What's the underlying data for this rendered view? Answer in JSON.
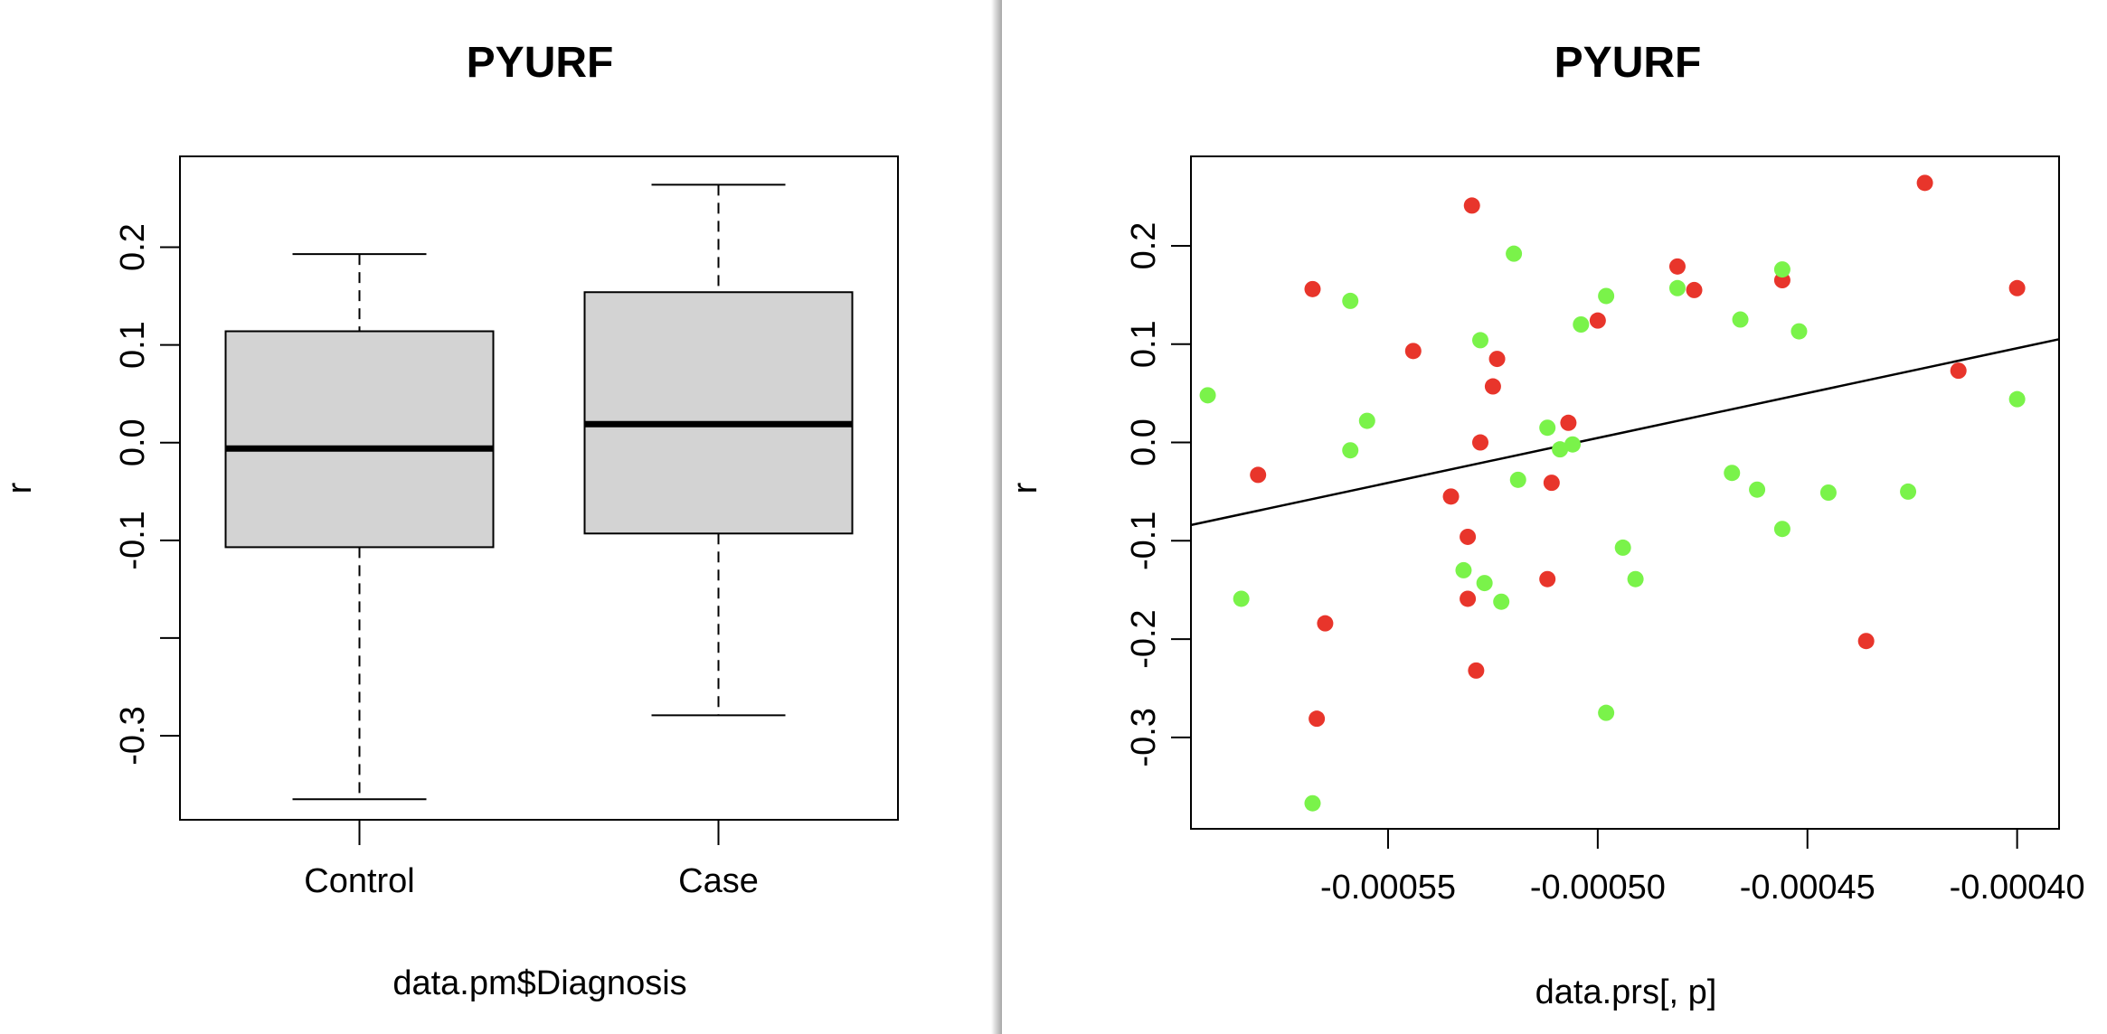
{
  "chart_data": [
    {
      "type": "box",
      "title": "PYURF",
      "xlabel": "data.pm$Diagnosis",
      "ylabel": "r",
      "ylim": [
        -0.386,
        0.293
      ],
      "yticks": [
        -0.3,
        -0.2,
        -0.1,
        0.0,
        0.1,
        0.2
      ],
      "ytick_labels": [
        "-0.3",
        "",
        "-0.1",
        "0.0",
        "0.1",
        "0.2"
      ],
      "box_fill": "#d3d3d3",
      "categories": [
        "Control",
        "Case"
      ],
      "boxes": [
        {
          "name": "Control",
          "min": -0.365,
          "q1": -0.107,
          "median": -0.006,
          "q3": 0.114,
          "max": 0.193
        },
        {
          "name": "Case",
          "min": -0.279,
          "q1": -0.093,
          "median": 0.019,
          "q3": 0.154,
          "max": 0.264
        }
      ]
    },
    {
      "type": "scatter",
      "title": "PYURF",
      "xlabel": "data.prs[, p]",
      "ylabel": "r",
      "xlim": [
        -0.000597,
        -0.00039
      ],
      "ylim": [
        -0.393,
        0.291
      ],
      "xticks": [
        -0.00055,
        -0.0005,
        -0.00045,
        -0.0004
      ],
      "xtick_labels": [
        "-0.00055",
        "-0.00050",
        "-0.00045",
        "-0.00040"
      ],
      "yticks": [
        -0.3,
        -0.2,
        -0.1,
        0.0,
        0.1,
        0.2
      ],
      "ytick_labels": [
        "-0.3",
        "-0.2",
        "-0.1",
        "0.0",
        "0.1",
        "0.2"
      ],
      "trend_line": {
        "x": [
          -0.000597,
          -0.00039
        ],
        "y": [
          -0.084,
          0.105
        ]
      },
      "series": [
        {
          "color": "#e8352b",
          "points": [
            {
              "x": -0.000581,
              "y": -0.033
            },
            {
              "x": -0.000568,
              "y": 0.156
            },
            {
              "x": -0.000567,
              "y": -0.281
            },
            {
              "x": -0.000565,
              "y": -0.184
            },
            {
              "x": -0.000544,
              "y": 0.093
            },
            {
              "x": -0.000535,
              "y": -0.055
            },
            {
              "x": -0.000531,
              "y": -0.096
            },
            {
              "x": -0.000531,
              "y": -0.159
            },
            {
              "x": -0.00053,
              "y": 0.241
            },
            {
              "x": -0.000529,
              "y": -0.232
            },
            {
              "x": -0.000528,
              "y": 0.0
            },
            {
              "x": -0.000525,
              "y": 0.057
            },
            {
              "x": -0.000524,
              "y": 0.085
            },
            {
              "x": -0.000512,
              "y": -0.139
            },
            {
              "x": -0.000511,
              "y": -0.041
            },
            {
              "x": -0.000507,
              "y": 0.02
            },
            {
              "x": -0.0005,
              "y": 0.124
            },
            {
              "x": -0.000481,
              "y": 0.179
            },
            {
              "x": -0.000477,
              "y": 0.155
            },
            {
              "x": -0.000456,
              "y": 0.165
            },
            {
              "x": -0.000436,
              "y": -0.202
            },
            {
              "x": -0.000422,
              "y": 0.264
            },
            {
              "x": -0.000414,
              "y": 0.073
            },
            {
              "x": -0.0004,
              "y": 0.157
            }
          ]
        },
        {
          "color": "#7af34a",
          "points": [
            {
              "x": -0.000593,
              "y": 0.048
            },
            {
              "x": -0.000585,
              "y": -0.159
            },
            {
              "x": -0.000568,
              "y": -0.367
            },
            {
              "x": -0.000559,
              "y": 0.144
            },
            {
              "x": -0.000559,
              "y": -0.008
            },
            {
              "x": -0.000555,
              "y": 0.022
            },
            {
              "x": -0.000532,
              "y": -0.13
            },
            {
              "x": -0.000528,
              "y": 0.104
            },
            {
              "x": -0.000527,
              "y": -0.143
            },
            {
              "x": -0.000523,
              "y": -0.162
            },
            {
              "x": -0.00052,
              "y": 0.192
            },
            {
              "x": -0.000519,
              "y": -0.038
            },
            {
              "x": -0.000512,
              "y": 0.015
            },
            {
              "x": -0.000509,
              "y": -0.007
            },
            {
              "x": -0.000506,
              "y": -0.002
            },
            {
              "x": -0.000504,
              "y": 0.12
            },
            {
              "x": -0.000498,
              "y": 0.149
            },
            {
              "x": -0.000498,
              "y": -0.275
            },
            {
              "x": -0.000494,
              "y": -0.107
            },
            {
              "x": -0.000491,
              "y": -0.139
            },
            {
              "x": -0.000481,
              "y": 0.157
            },
            {
              "x": -0.000468,
              "y": -0.031
            },
            {
              "x": -0.000466,
              "y": 0.125
            },
            {
              "x": -0.000462,
              "y": -0.048
            },
            {
              "x": -0.000456,
              "y": 0.176
            },
            {
              "x": -0.000456,
              "y": -0.088
            },
            {
              "x": -0.000452,
              "y": 0.113
            },
            {
              "x": -0.000445,
              "y": -0.051
            },
            {
              "x": -0.000426,
              "y": -0.05
            },
            {
              "x": -0.0004,
              "y": 0.044
            }
          ]
        }
      ]
    }
  ]
}
